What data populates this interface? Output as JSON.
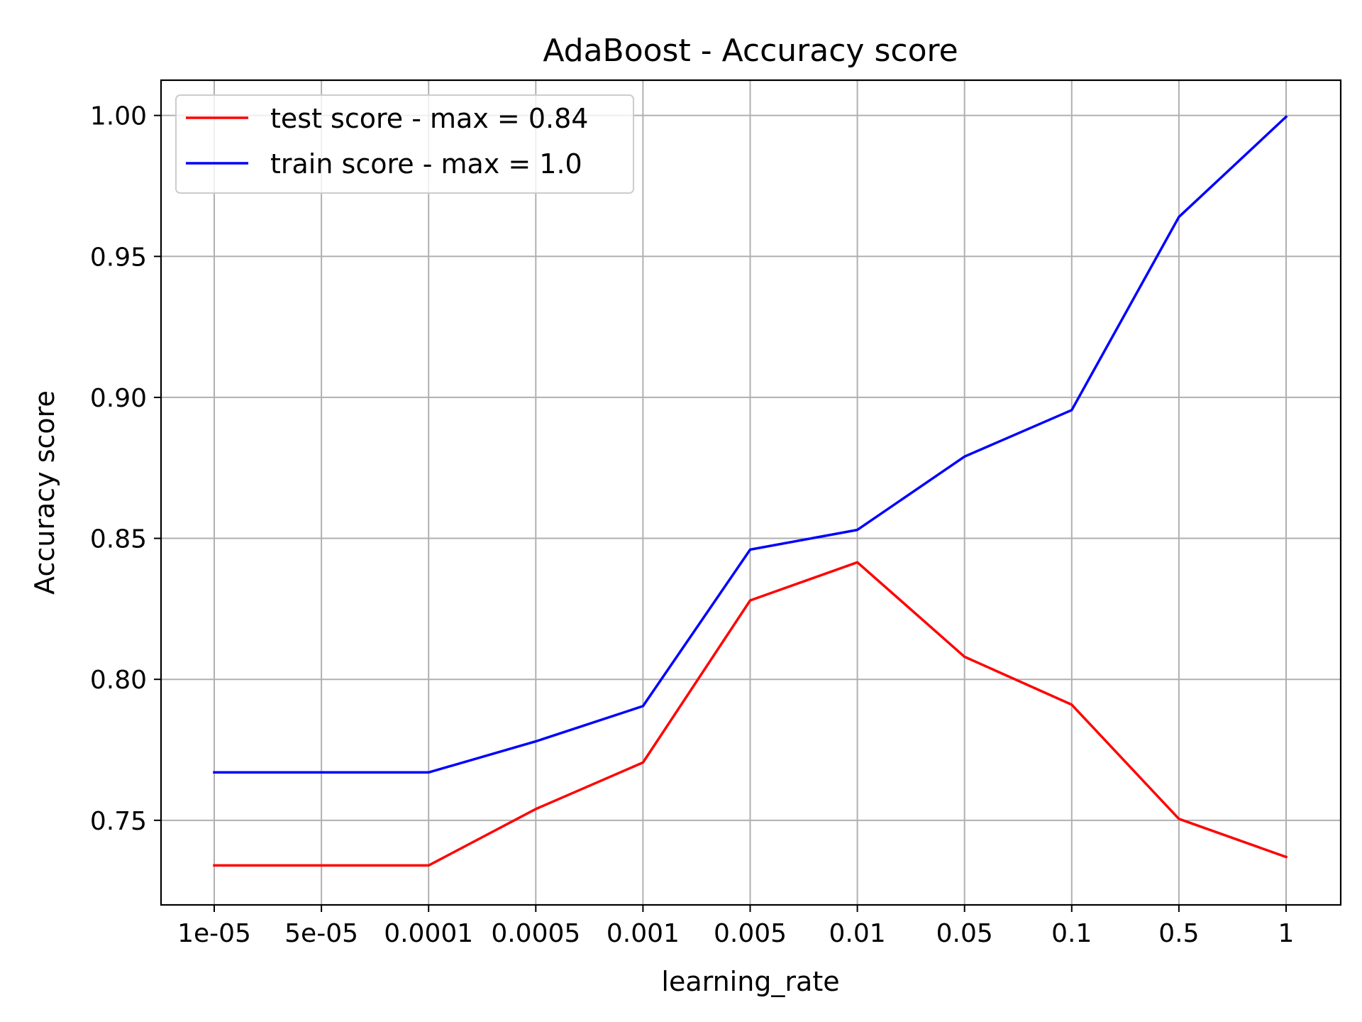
{
  "chart_data": {
    "type": "line",
    "title": "AdaBoost - Accuracy score",
    "xlabel": "learning_rate",
    "ylabel": "Accuracy score",
    "categories": [
      "1e-05",
      "5e-05",
      "0.0001",
      "0.0005",
      "0.001",
      "0.005",
      "0.01",
      "0.05",
      "0.1",
      "0.5",
      "1"
    ],
    "x_scale": "categorical",
    "ylim": [
      0.72,
      1.0125
    ],
    "yticks": [
      0.75,
      0.8,
      0.85,
      0.9,
      0.95,
      1.0
    ],
    "ytick_labels": [
      "0.75",
      "0.80",
      "0.85",
      "0.90",
      "0.95",
      "1.00"
    ],
    "grid": true,
    "legend_position": "top-left",
    "series": [
      {
        "name": "test score - max = 0.84",
        "color": "#ff0000",
        "values": [
          0.734,
          0.734,
          0.734,
          0.754,
          0.7705,
          0.828,
          0.8415,
          0.808,
          0.791,
          0.7505,
          0.737
        ]
      },
      {
        "name": "train score - max = 1.0",
        "color": "#0000ff",
        "values": [
          0.767,
          0.767,
          0.767,
          0.778,
          0.7905,
          0.846,
          0.853,
          0.879,
          0.8955,
          0.964,
          0.9995
        ]
      }
    ]
  }
}
